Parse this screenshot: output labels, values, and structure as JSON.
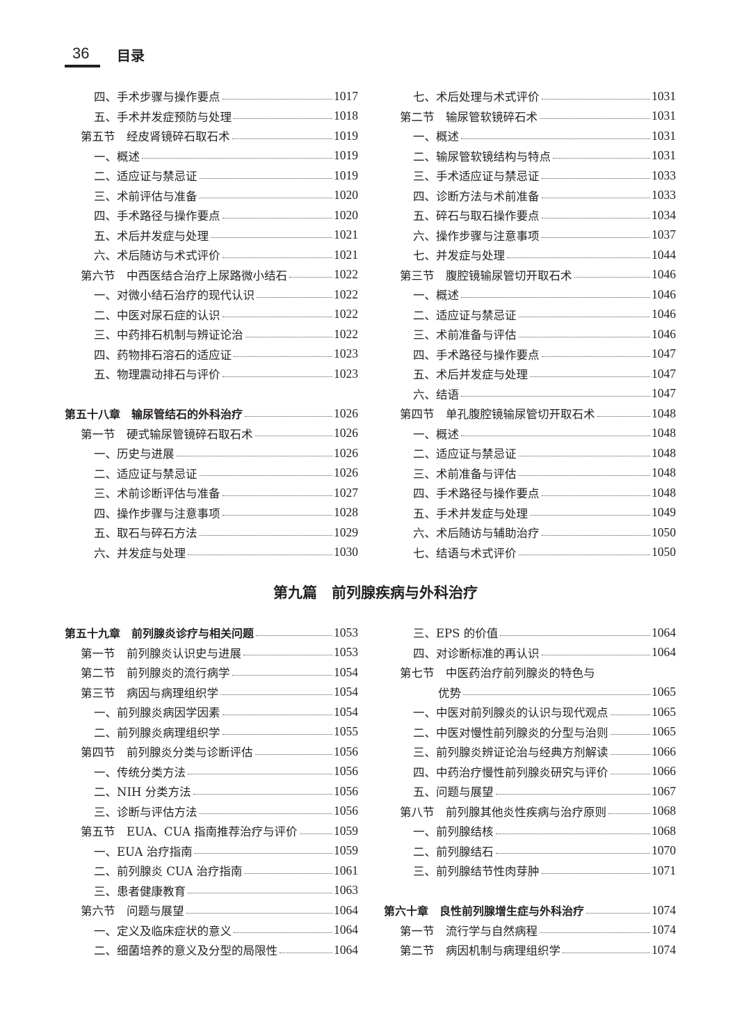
{
  "header": {
    "page_number": "36",
    "title": "目录"
  },
  "part_title": "第九篇　前列腺疾病与外科治疗",
  "top_left": [
    {
      "level": "item",
      "text": "四、手术步骤与操作要点",
      "page": "1017"
    },
    {
      "level": "item",
      "text": "五、手术并发症预防与处理",
      "page": "1018"
    },
    {
      "level": "section",
      "text": "第五节　经皮肾镜碎石取石术",
      "page": "1019"
    },
    {
      "level": "item",
      "text": "一、概述",
      "page": "1019"
    },
    {
      "level": "item",
      "text": "二、适应证与禁忌证",
      "page": "1019"
    },
    {
      "level": "item",
      "text": "三、术前评估与准备",
      "page": "1020"
    },
    {
      "level": "item",
      "text": "四、手术路径与操作要点",
      "page": "1020"
    },
    {
      "level": "item",
      "text": "五、术后并发症与处理",
      "page": "1021"
    },
    {
      "level": "item",
      "text": "六、术后随访与术式评价",
      "page": "1021"
    },
    {
      "level": "section",
      "text": "第六节　中西医结合治疗上尿路微小结石",
      "page": "1022"
    },
    {
      "level": "item",
      "text": "一、对微小结石治疗的现代认识",
      "page": "1022"
    },
    {
      "level": "item",
      "text": "二、中医对尿石症的认识",
      "page": "1022"
    },
    {
      "level": "item",
      "text": "三、中药排石机制与辨证论治",
      "page": "1022"
    },
    {
      "level": "item",
      "text": "四、药物排石溶石的适应证",
      "page": "1023"
    },
    {
      "level": "item",
      "text": "五、物理震动排石与评价",
      "page": "1023"
    },
    {
      "level": "blank",
      "text": "",
      "page": ""
    },
    {
      "level": "chapter",
      "text": "第五十八章　输尿管结石的外科治疗",
      "page": "1026"
    },
    {
      "level": "section",
      "text": "第一节　硬式输尿管镜碎石取石术",
      "page": "1026"
    },
    {
      "level": "item",
      "text": "一、历史与进展",
      "page": "1026"
    },
    {
      "level": "item",
      "text": "二、适应证与禁忌证",
      "page": "1026"
    },
    {
      "level": "item",
      "text": "三、术前诊断评估与准备",
      "page": "1027"
    },
    {
      "level": "item",
      "text": "四、操作步骤与注意事项",
      "page": "1028"
    },
    {
      "level": "item",
      "text": "五、取石与碎石方法",
      "page": "1029"
    },
    {
      "level": "item",
      "text": "六、并发症与处理",
      "page": "1030"
    }
  ],
  "top_right": [
    {
      "level": "item",
      "text": "七、术后处理与术式评价",
      "page": "1031"
    },
    {
      "level": "section",
      "text": "第二节　输尿管软镜碎石术",
      "page": "1031"
    },
    {
      "level": "item",
      "text": "一、概述",
      "page": "1031"
    },
    {
      "level": "item",
      "text": "二、输尿管软镜结构与特点",
      "page": "1031"
    },
    {
      "level": "item",
      "text": "三、手术适应证与禁忌证",
      "page": "1033"
    },
    {
      "level": "item",
      "text": "四、诊断方法与术前准备",
      "page": "1033"
    },
    {
      "level": "item",
      "text": "五、碎石与取石操作要点",
      "page": "1034"
    },
    {
      "level": "item",
      "text": "六、操作步骤与注意事项",
      "page": "1037"
    },
    {
      "level": "item",
      "text": "七、并发症与处理",
      "page": "1044"
    },
    {
      "level": "section",
      "text": "第三节　腹腔镜输尿管切开取石术",
      "page": "1046"
    },
    {
      "level": "item",
      "text": "一、概述",
      "page": "1046"
    },
    {
      "level": "item",
      "text": "二、适应证与禁忌证",
      "page": "1046"
    },
    {
      "level": "item",
      "text": "三、术前准备与评估",
      "page": "1046"
    },
    {
      "level": "item",
      "text": "四、手术路径与操作要点",
      "page": "1047"
    },
    {
      "level": "item",
      "text": "五、术后并发症与处理",
      "page": "1047"
    },
    {
      "level": "item",
      "text": "六、结语",
      "page": "1047"
    },
    {
      "level": "section",
      "text": "第四节　单孔腹腔镜输尿管切开取石术",
      "page": "1048"
    },
    {
      "level": "item",
      "text": "一、概述",
      "page": "1048"
    },
    {
      "level": "item",
      "text": "二、适应证与禁忌证",
      "page": "1048"
    },
    {
      "level": "item",
      "text": "三、术前准备与评估",
      "page": "1048"
    },
    {
      "level": "item",
      "text": "四、手术路径与操作要点",
      "page": "1048"
    },
    {
      "level": "item",
      "text": "五、手术并发症与处理",
      "page": "1049"
    },
    {
      "level": "item",
      "text": "六、术后随访与辅助治疗",
      "page": "1050"
    },
    {
      "level": "item",
      "text": "七、结语与术式评价",
      "page": "1050"
    }
  ],
  "bottom_left": [
    {
      "level": "chapter",
      "text": "第五十九章　前列腺炎诊疗与相关问题",
      "page": "1053"
    },
    {
      "level": "section",
      "text": "第一节　前列腺炎认识史与进展",
      "page": "1053"
    },
    {
      "level": "section",
      "text": "第二节　前列腺炎的流行病学",
      "page": "1054"
    },
    {
      "level": "section",
      "text": "第三节　病因与病理组织学",
      "page": "1054"
    },
    {
      "level": "item",
      "text": "一、前列腺炎病因学因素",
      "page": "1054"
    },
    {
      "level": "item",
      "text": "二、前列腺炎病理组织学",
      "page": "1055"
    },
    {
      "level": "section",
      "text": "第四节　前列腺炎分类与诊断评估",
      "page": "1056"
    },
    {
      "level": "item",
      "text": "一、传统分类方法",
      "page": "1056"
    },
    {
      "level": "item",
      "text": "二、NIH 分类方法",
      "page": "1056"
    },
    {
      "level": "item",
      "text": "三、诊断与评估方法",
      "page": "1056"
    },
    {
      "level": "section",
      "text": "第五节　EUA、CUA 指南推荐治疗与评价",
      "page": "1059"
    },
    {
      "level": "item",
      "text": "一、EUA 治疗指南",
      "page": "1059"
    },
    {
      "level": "item",
      "text": "二、前列腺炎 CUA 治疗指南",
      "page": "1061"
    },
    {
      "level": "item",
      "text": "三、患者健康教育",
      "page": "1063"
    },
    {
      "level": "section",
      "text": "第六节　问题与展望",
      "page": "1064"
    },
    {
      "level": "item",
      "text": "一、定义及临床症状的意义",
      "page": "1064"
    },
    {
      "level": "item",
      "text": "二、细菌培养的意义及分型的局限性",
      "page": "1064"
    }
  ],
  "bottom_right": [
    {
      "level": "item",
      "text": "三、EPS 的价值",
      "page": "1064"
    },
    {
      "level": "item",
      "text": "四、对诊断标准的再认识",
      "page": "1064"
    },
    {
      "level": "section-head",
      "text": "第七节　中医药治疗前列腺炎的特色与",
      "page": ""
    },
    {
      "level": "cont",
      "text": "优势",
      "page": "1065"
    },
    {
      "level": "item",
      "text": "一、中医对前列腺炎的认识与现代观点",
      "page": "1065"
    },
    {
      "level": "item",
      "text": "二、中医对慢性前列腺炎的分型与治则",
      "page": "1065"
    },
    {
      "level": "item",
      "text": "三、前列腺炎辨证论治与经典方剂解读",
      "page": "1066"
    },
    {
      "level": "item",
      "text": "四、中药治疗慢性前列腺炎研究与评价",
      "page": "1066"
    },
    {
      "level": "item",
      "text": "五、问题与展望",
      "page": "1067"
    },
    {
      "level": "section",
      "text": "第八节　前列腺其他炎性疾病与治疗原则",
      "page": "1068"
    },
    {
      "level": "item",
      "text": "一、前列腺结核",
      "page": "1068"
    },
    {
      "level": "item",
      "text": "二、前列腺结石",
      "page": "1070"
    },
    {
      "level": "item",
      "text": "三、前列腺结节性肉芽肿",
      "page": "1071"
    },
    {
      "level": "blank",
      "text": "",
      "page": ""
    },
    {
      "level": "chapter",
      "text": "第六十章　良性前列腺增生症与外科治疗",
      "page": "1074"
    },
    {
      "level": "section",
      "text": "第一节　流行学与自然病程",
      "page": "1074"
    },
    {
      "level": "section",
      "text": "第二节　病因机制与病理组织学",
      "page": "1074"
    }
  ]
}
